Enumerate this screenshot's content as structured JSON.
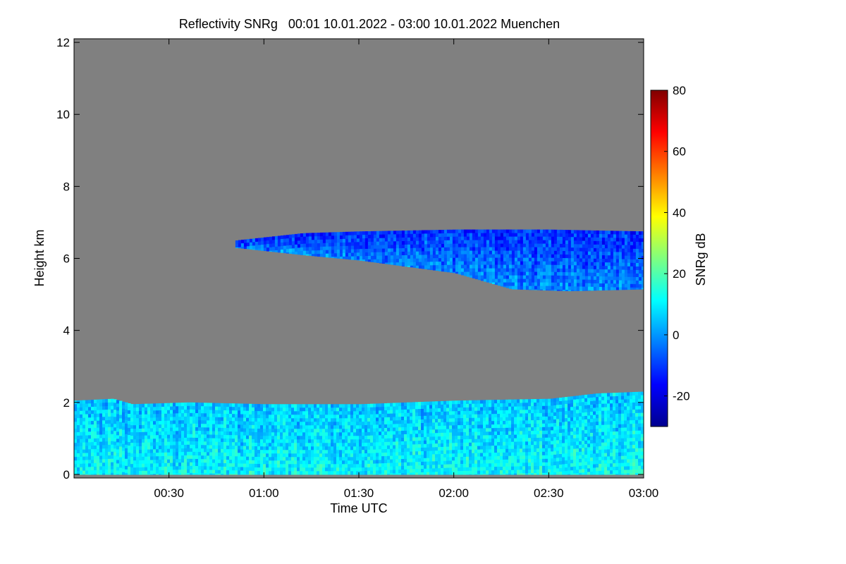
{
  "chart_data": {
    "type": "heatmap",
    "title": "Reflectivity SNRg   00:01 10.01.2022 - 03:00 10.01.2022 Muenchen",
    "xlabel": "Time UTC",
    "ylabel": "Height km",
    "xlim_hours": [
      0.0,
      3.0
    ],
    "ylim_km": [
      -0.1,
      12.1
    ],
    "x_ticks": [
      {
        "value": 0.5,
        "label": "00:30"
      },
      {
        "value": 1.0,
        "label": "01:00"
      },
      {
        "value": 1.5,
        "label": "01:30"
      },
      {
        "value": 2.0,
        "label": "02:00"
      },
      {
        "value": 2.5,
        "label": "02:30"
      },
      {
        "value": 3.0,
        "label": "03:00"
      }
    ],
    "y_ticks": [
      {
        "value": 0,
        "label": "0"
      },
      {
        "value": 2,
        "label": "2"
      },
      {
        "value": 4,
        "label": "4"
      },
      {
        "value": 6,
        "label": "6"
      },
      {
        "value": 8,
        "label": "8"
      },
      {
        "value": 10,
        "label": "10"
      },
      {
        "value": 12,
        "label": "12"
      }
    ],
    "colorbar": {
      "label": "SNRg dB",
      "range": [
        -30,
        80
      ],
      "ticks": [
        {
          "value": -20,
          "label": "-20"
        },
        {
          "value": 0,
          "label": "0"
        },
        {
          "value": 20,
          "label": "20"
        },
        {
          "value": 40,
          "label": "40"
        },
        {
          "value": 60,
          "label": "60"
        },
        {
          "value": 80,
          "label": "80"
        }
      ],
      "colors": [
        "#00008f",
        "#0000ff",
        "#007fff",
        "#00ffff",
        "#7fff7f",
        "#ffff00",
        "#ff7f00",
        "#ff0000",
        "#800000"
      ]
    },
    "background_color": "#808080",
    "echo_regions": [
      {
        "name": "low-level cloud",
        "time_start": 0.0,
        "time_end": 3.0,
        "base_km": 0.0,
        "top_profile": [
          [
            0.0,
            2.05
          ],
          [
            0.2,
            2.1
          ],
          [
            0.3,
            1.95
          ],
          [
            0.6,
            2.0
          ],
          [
            1.0,
            1.95
          ],
          [
            1.5,
            1.95
          ],
          [
            2.0,
            2.05
          ],
          [
            2.5,
            2.1
          ],
          [
            2.75,
            2.25
          ],
          [
            3.0,
            2.3
          ]
        ],
        "typical_snr_db": [
          0,
          15
        ]
      },
      {
        "name": "mid-level cloud",
        "time_start": 0.85,
        "time_end": 3.0,
        "top_profile": [
          [
            0.85,
            6.5
          ],
          [
            1.2,
            6.7
          ],
          [
            1.5,
            6.75
          ],
          [
            2.0,
            6.8
          ],
          [
            2.5,
            6.8
          ],
          [
            3.0,
            6.75
          ]
        ],
        "base_profile": [
          [
            0.85,
            6.3
          ],
          [
            1.2,
            6.1
          ],
          [
            1.5,
            5.95
          ],
          [
            2.0,
            5.6
          ],
          [
            2.3,
            5.15
          ],
          [
            2.6,
            5.1
          ],
          [
            3.0,
            5.15
          ]
        ],
        "typical_snr_db": [
          -20,
          5
        ]
      }
    ]
  }
}
